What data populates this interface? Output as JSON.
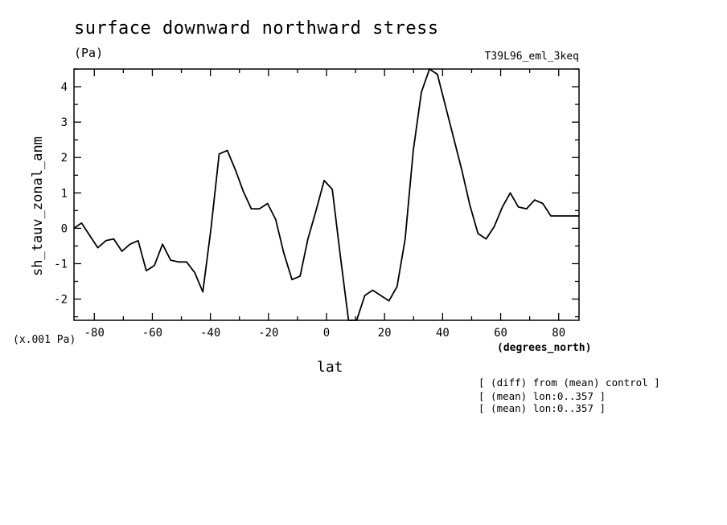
{
  "title": "surface downward northward stress",
  "units": "(Pa)",
  "run_label": "T39L96_eml_3keq",
  "scale_label": "(x.001 Pa)",
  "x_unit_label": "(degrees_north)",
  "notes": [
    "[ (diff) from (mean) control ]",
    "[ (mean) lon:0..357 ]",
    "[ (mean) lon:0..357 ]"
  ],
  "chart_data": {
    "type": "line",
    "xlabel": "lat",
    "ylabel": "sh_tauv_zonal_anm",
    "xlim": [
      -87,
      87
    ],
    "ylim": [
      4.5,
      -2.6
    ],
    "y_inverted": true,
    "x_ticks": [
      -80,
      -60,
      -40,
      -20,
      0,
      20,
      40,
      60,
      80
    ],
    "x_tick_labels": [
      "-80",
      "-60",
      "-40",
      "-20",
      "0",
      "20",
      "40",
      "60",
      "80"
    ],
    "y_ticks": [
      -2,
      -1,
      0,
      1,
      2,
      3,
      4
    ],
    "y_tick_labels": [
      "-2",
      "-1",
      "0",
      "1",
      "2",
      "3",
      "4"
    ],
    "series": [
      {
        "x": [
          -87.2,
          -84.4,
          -81.6,
          -78.8,
          -76.0,
          -73.3,
          -70.5,
          -67.7,
          -64.9,
          -62.1,
          -59.3,
          -56.5,
          -53.7,
          -51.0,
          -48.2,
          -45.4,
          -42.6,
          -39.8,
          -37.0,
          -34.2,
          -31.4,
          -28.7,
          -25.9,
          -23.1,
          -20.3,
          -17.5,
          -14.7,
          -11.9,
          -9.1,
          -6.4,
          -3.6,
          -0.8,
          2.0,
          4.8,
          7.6,
          10.4,
          13.2,
          15.9,
          18.7,
          21.5,
          24.3,
          27.1,
          29.9,
          32.7,
          35.5,
          38.2,
          41.0,
          43.8,
          46.6,
          49.4,
          52.2,
          55.0,
          57.8,
          60.6,
          63.3,
          66.1,
          68.9,
          71.7,
          74.5,
          77.3,
          80.1,
          82.9,
          85.7,
          87.0
        ],
        "values": [
          0.0,
          0.15,
          -0.2,
          -0.55,
          -0.35,
          -0.3,
          -0.65,
          -0.45,
          -0.35,
          -1.2,
          -1.05,
          -0.45,
          -0.9,
          -0.95,
          -0.95,
          -1.25,
          -1.8,
          0.0,
          2.1,
          2.2,
          1.65,
          1.05,
          0.55,
          0.55,
          0.7,
          0.25,
          -0.7,
          -1.45,
          -1.35,
          -0.3,
          0.5,
          1.35,
          1.1,
          -0.8,
          -2.6,
          -2.6,
          -1.9,
          -1.75,
          -1.9,
          -2.05,
          -1.65,
          -0.3,
          2.2,
          3.85,
          4.5,
          4.35,
          3.45,
          2.55,
          1.65,
          0.65,
          -0.15,
          -0.3,
          0.05,
          0.6,
          1.0,
          0.6,
          0.55,
          0.8,
          0.7,
          0.35,
          0.35,
          0.35,
          0.35,
          0.35
        ]
      }
    ]
  }
}
